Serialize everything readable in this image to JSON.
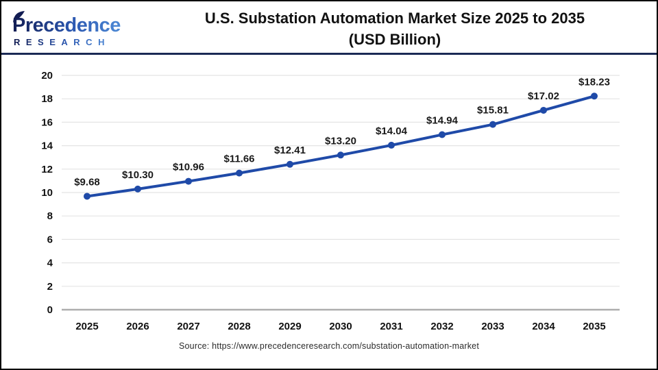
{
  "header": {
    "logo": {
      "brand": "Precedence",
      "subtitle": "RESEARCH"
    },
    "title_line1": "U.S. Substation Automation Market Size 2025 to 2035",
    "title_line2": "(USD Billion)"
  },
  "chart_data": {
    "type": "line",
    "title": "U.S. Substation Automation Market Size 2025 to 2035 (USD Billion)",
    "categories": [
      "2025",
      "2026",
      "2027",
      "2028",
      "2029",
      "2030",
      "2031",
      "2032",
      "2033",
      "2034",
      "2035"
    ],
    "values": [
      9.68,
      10.3,
      10.96,
      11.66,
      12.41,
      13.2,
      14.04,
      14.94,
      15.81,
      17.02,
      18.23
    ],
    "point_labels": [
      "$9.68",
      "$10.30",
      "$10.96",
      "$11.66",
      "$12.41",
      "$13.20",
      "$14.04",
      "$14.94",
      "$15.81",
      "$17.02",
      "$18.23"
    ],
    "xlabel": "",
    "ylabel": "",
    "ylim": [
      0,
      20
    ],
    "ytick_step": 2,
    "grid": true,
    "legend": "none",
    "line_color": "#1f4aa8",
    "marker": "circle"
  },
  "footer": {
    "source": "Source: https://www.precedenceresearch.com/substation-automation-market"
  },
  "colors": {
    "accent_navy": "#1b2a55",
    "logo_dark": "#121c52",
    "logo_mid": "#2b57b0",
    "logo_light": "#4e8ad6",
    "grid_line": "#e4e4e4",
    "axis_line": "#aeaeae",
    "label_text": "#1a1a1a",
    "tick_text": "#111111"
  }
}
